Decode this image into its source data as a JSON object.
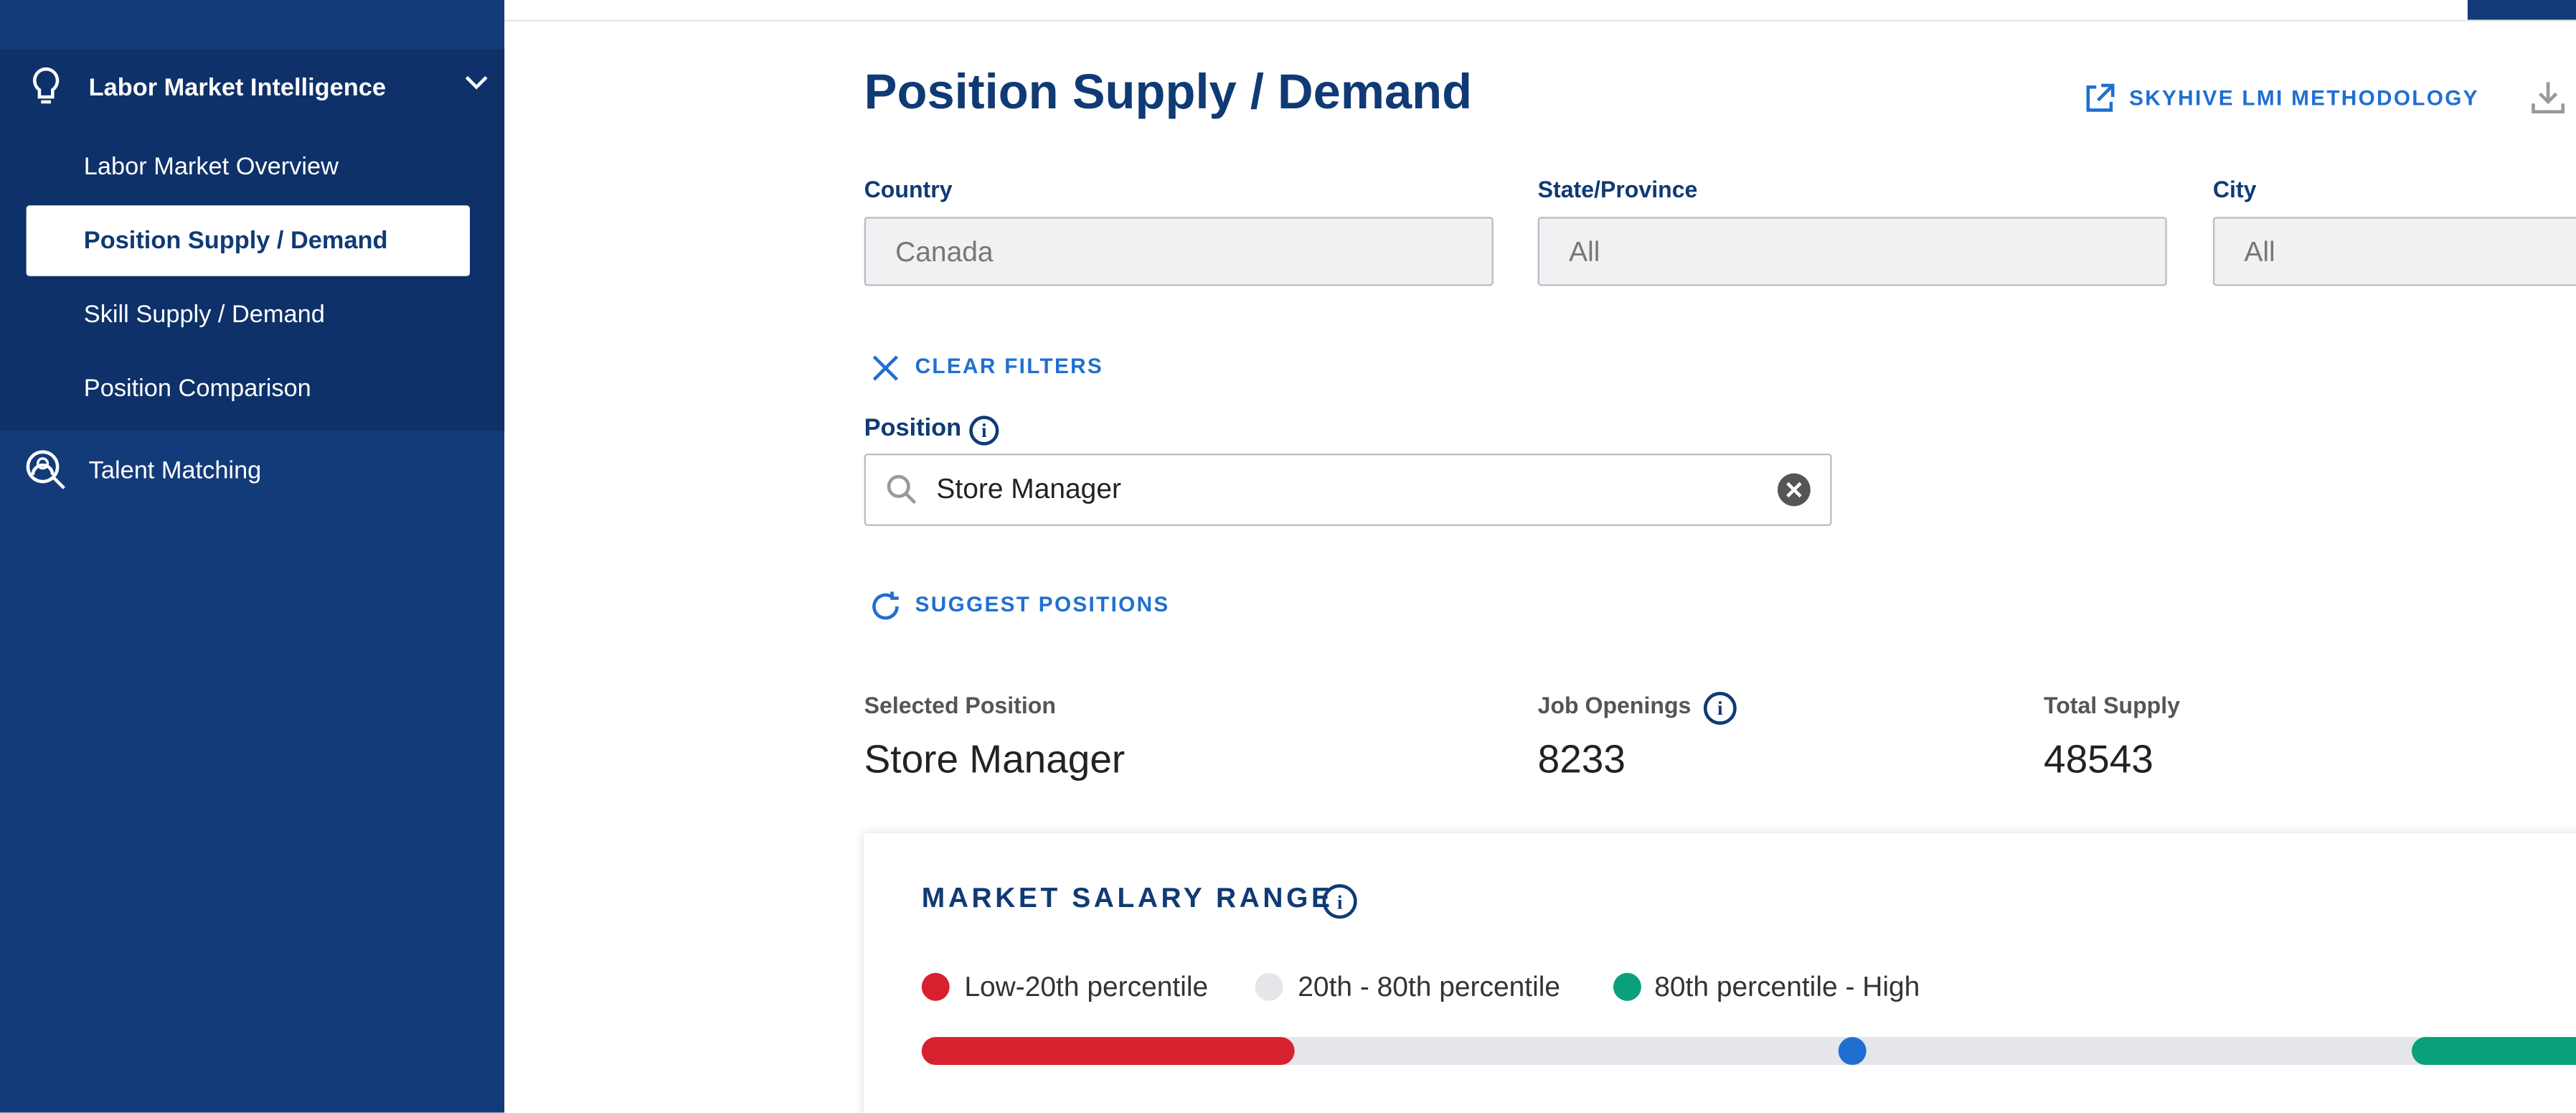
{
  "sidebar": {
    "section": "Labor Market Intelligence",
    "items": [
      "Labor Market Overview",
      "Position Supply / Demand",
      "Skill Supply / Demand",
      "Position Comparison"
    ],
    "other": "Talent Matching"
  },
  "header": {
    "title": "Position Supply / Demand",
    "link": "SKYHIVE LMI METHODOLOGY"
  },
  "filters": [
    {
      "label": "Country",
      "value": "Canada"
    },
    {
      "label": "State/Province",
      "value": "All"
    },
    {
      "label": "City",
      "value": "All"
    }
  ],
  "clear_filters": "CLEAR FILTERS",
  "position": {
    "label": "Position",
    "value": "Store Manager"
  },
  "suggest": "SUGGEST POSITIONS",
  "stats": [
    {
      "label": "Selected Position",
      "value": "Store Manager"
    },
    {
      "label": "Job Openings",
      "value": "8233"
    },
    {
      "label": "Total Supply",
      "value": "48543"
    }
  ],
  "salary": {
    "title": "MARKET SALARY RANGE",
    "legend": [
      "Low-20th percentile",
      "20th - 80th percentile",
      "80th percentile - High"
    ]
  }
}
